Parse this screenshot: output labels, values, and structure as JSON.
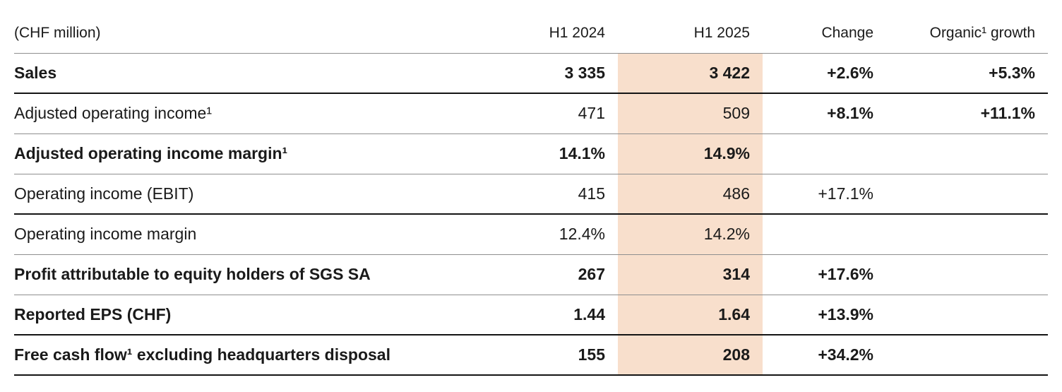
{
  "table": {
    "unit_label": "(CHF million)",
    "highlight_color": "#f8dfcc",
    "columns": {
      "h1_2024": "H1 2024",
      "h1_2025": "H1 2025",
      "change": "Change",
      "organic_growth": "Organic¹ growth"
    },
    "rows": [
      {
        "label": "Sales",
        "h1_2024": "3 335",
        "h1_2025": "3 422",
        "change": "+2.6%",
        "organic_growth": "+5.3%"
      },
      {
        "label": "Adjusted operating income¹",
        "h1_2024": "471",
        "h1_2025": "509",
        "change": "+8.1%",
        "organic_growth": "+11.1%"
      },
      {
        "label": "Adjusted operating income margin¹",
        "h1_2024": "14.1%",
        "h1_2025": "14.9%",
        "change": "",
        "organic_growth": ""
      },
      {
        "label": "Operating income (EBIT)",
        "h1_2024": "415",
        "h1_2025": "486",
        "change": "+17.1%",
        "organic_growth": ""
      },
      {
        "label": "Operating income margin",
        "h1_2024": "12.4%",
        "h1_2025": "14.2%",
        "change": "",
        "organic_growth": ""
      },
      {
        "label": "Profit attributable to equity holders of SGS SA",
        "h1_2024": "267",
        "h1_2025": "314",
        "change": "+17.6%",
        "organic_growth": ""
      },
      {
        "label": "Reported EPS (CHF)",
        "h1_2024": "1.44",
        "h1_2025": "1.64",
        "change": "+13.9%",
        "organic_growth": ""
      },
      {
        "label": "Free cash flow¹ excluding headquarters disposal",
        "h1_2024": "155",
        "h1_2025": "208",
        "change": "+34.2%",
        "organic_growth": ""
      }
    ]
  }
}
